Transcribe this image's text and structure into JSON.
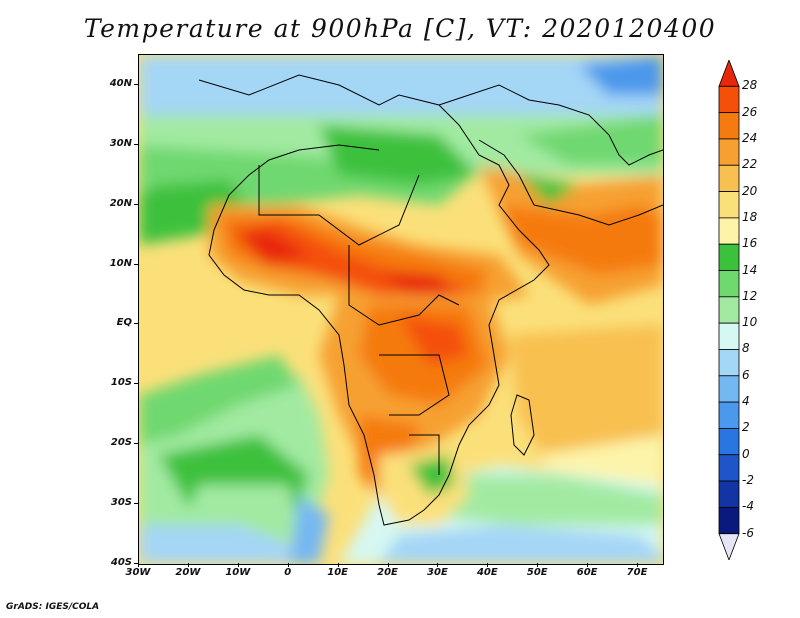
{
  "title": "Temperature at 900hPa [C], VT: 2020120400",
  "credit": "GrADS: IGES/COLA",
  "axes": {
    "lat_labels": [
      "40N",
      "30N",
      "20N",
      "10N",
      "EQ",
      "10S",
      "20S",
      "30S",
      "40S"
    ],
    "lat_values": [
      40,
      30,
      20,
      10,
      0,
      -10,
      -20,
      -30,
      -40
    ],
    "lon_labels": [
      "30W",
      "20W",
      "10W",
      "0",
      "10E",
      "20E",
      "30E",
      "40E",
      "50E",
      "60E",
      "70E"
    ],
    "lon_values": [
      -30,
      -20,
      -10,
      0,
      10,
      20,
      30,
      40,
      50,
      60,
      70
    ],
    "lat_range": [
      -40,
      45
    ],
    "lon_range": [
      -30,
      75
    ]
  },
  "colorbar": {
    "labels": [
      "28",
      "26",
      "24",
      "22",
      "20",
      "18",
      "16",
      "14",
      "12",
      "10",
      "8",
      "6",
      "4",
      "2",
      "0",
      "-2",
      "-4",
      "-6"
    ],
    "colors": [
      "#e8280c",
      "#f4500a",
      "#f57a10",
      "#f6a032",
      "#f8c050",
      "#fbe07a",
      "#fdf4aa",
      "#3cc13c",
      "#6fd86f",
      "#a2eaa2",
      "#d6f8f2",
      "#a4d6f6",
      "#74b8f2",
      "#4c98ec",
      "#2a76e0",
      "#1f55c8",
      "#1234a4",
      "#0a1a7c",
      "#e6e4f6"
    ]
  }
}
